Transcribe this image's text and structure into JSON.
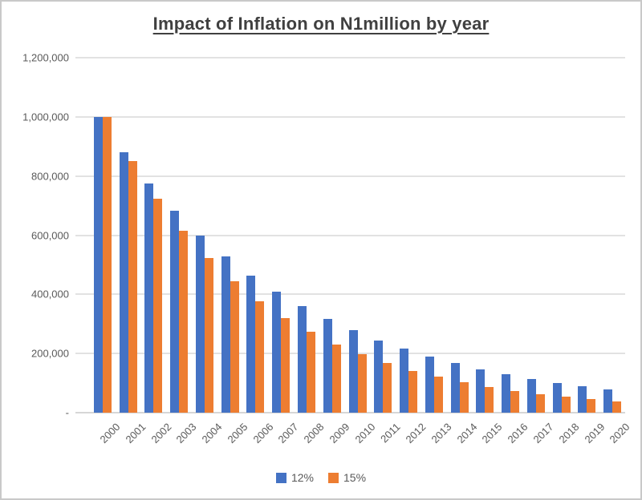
{
  "frame": {
    "background": "#ffffff",
    "border_color": "#c9c9c9"
  },
  "chart_data": {
    "type": "bar",
    "title": "Impact of Inflation on N1million by year",
    "xlabel": "",
    "ylabel": "",
    "categories": [
      "2000",
      "2001",
      "2002",
      "2003",
      "2004",
      "2005",
      "2006",
      "2007",
      "2008",
      "2009",
      "2010",
      "2011",
      "2012",
      "2013",
      "2014",
      "2015",
      "2016",
      "2017",
      "2018",
      "2019",
      "2020"
    ],
    "series": [
      {
        "name": "12%",
        "color": "#4472C4",
        "values": [
          1000000,
          880000,
          774400,
          681472,
          599695,
          527732,
          464404,
          408676,
          359635,
          316478,
          278501,
          245081,
          215671,
          189791,
          167016,
          146974,
          129337,
          113817,
          100159,
          88140,
          77563
        ]
      },
      {
        "name": "15%",
        "color": "#ED7D31",
        "values": [
          1000000,
          850000,
          722500,
          614125,
          522006,
          443705,
          377150,
          320577,
          272491,
          231617,
          196874,
          167343,
          142242,
          120905,
          102770,
          87354,
          74251,
          63113,
          53646,
          45599,
          38760
        ]
      }
    ],
    "ylim": [
      0,
      1200000
    ],
    "yticks": [
      {
        "value": 0,
        "label": "-"
      },
      {
        "value": 200000,
        "label": "200,000"
      },
      {
        "value": 400000,
        "label": "400,000"
      },
      {
        "value": 600000,
        "label": "600,000"
      },
      {
        "value": 800000,
        "label": "800,000"
      },
      {
        "value": 1000000,
        "label": "1,000,000"
      },
      {
        "value": 1200000,
        "label": "1,200,000"
      }
    ],
    "grid": "horizontal",
    "legend_position": "bottom",
    "text_colors": {
      "title": "#404040",
      "axis_labels": "#595959",
      "legend": "#595959"
    }
  }
}
